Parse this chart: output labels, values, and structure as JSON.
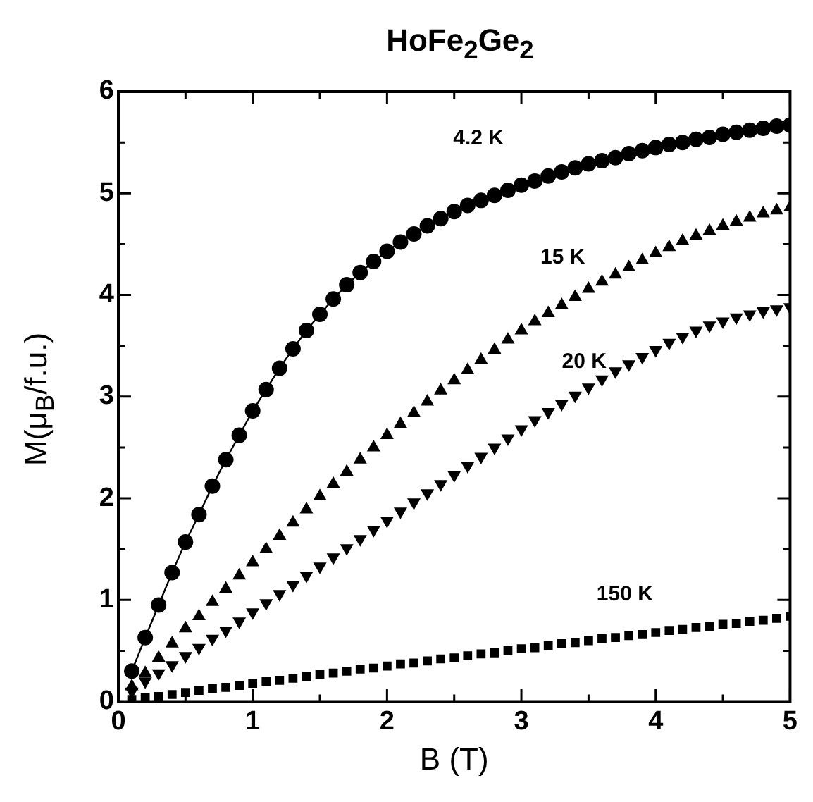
{
  "chart_data": {
    "type": "scatter",
    "title": "HoFe$_{2}$Ge$_{2}$",
    "xlabel": "B (T)",
    "ylabel": "M(μ$_{B}$/f.u.)",
    "xlim": [
      0,
      5
    ],
    "ylim": [
      0,
      6
    ],
    "xticks": [
      0,
      {
        "value": 0.5,
        "label": null
      },
      1,
      {
        "value": 1.5,
        "label": null
      },
      2,
      {
        "value": 2.5,
        "label": null
      },
      3,
      {
        "value": 3.5,
        "label": null
      },
      4,
      {
        "value": 4.5,
        "label": null
      },
      5
    ],
    "yticks": [
      0,
      {
        "value": 0.5,
        "label": null
      },
      1,
      {
        "value": 1.5,
        "label": null
      },
      2,
      {
        "value": 2.5,
        "label": null
      },
      3,
      {
        "value": 3.5,
        "label": null
      },
      4,
      {
        "value": 4.5,
        "label": null
      },
      5,
      {
        "value": 5.5,
        "label": null
      },
      6
    ],
    "series": [
      {
        "name": "4.2 K",
        "type": "line",
        "marker": "circle",
        "line_style": "solid",
        "color": "#000000",
        "x": [
          0.1,
          0.2,
          0.3,
          0.4,
          0.5,
          0.6,
          0.7,
          0.8,
          0.9,
          1.0,
          1.1,
          1.2,
          1.3,
          1.4,
          1.5,
          1.6,
          1.7,
          1.8,
          1.9,
          2.0,
          2.1,
          2.2,
          2.3,
          2.4,
          2.5,
          2.6,
          2.7,
          2.8,
          2.9,
          3.0,
          3.1,
          3.2,
          3.3,
          3.4,
          3.5,
          3.6,
          3.7,
          3.8,
          3.9,
          4.0,
          4.1,
          4.2,
          4.3,
          4.4,
          4.5,
          4.6,
          4.7,
          4.8,
          4.9,
          5.0
        ],
        "values": [
          0.3,
          0.63,
          0.95,
          1.27,
          1.57,
          1.84,
          2.12,
          2.38,
          2.62,
          2.86,
          3.07,
          3.28,
          3.47,
          3.65,
          3.81,
          3.96,
          4.1,
          4.22,
          4.33,
          4.43,
          4.52,
          4.6,
          4.68,
          4.75,
          4.82,
          4.88,
          4.93,
          4.98,
          5.03,
          5.08,
          5.12,
          5.17,
          5.21,
          5.25,
          5.29,
          5.32,
          5.35,
          5.39,
          5.42,
          5.45,
          5.48,
          5.5,
          5.53,
          5.55,
          5.58,
          5.6,
          5.62,
          5.64,
          5.66,
          5.67
        ]
      },
      {
        "name": "15 K",
        "marker": "triangle",
        "color": "#000000",
        "x": [
          0.1,
          0.2,
          0.3,
          0.4,
          0.5,
          0.6,
          0.7,
          0.8,
          0.9,
          1.0,
          1.1,
          1.2,
          1.3,
          1.4,
          1.5,
          1.6,
          1.7,
          1.8,
          1.9,
          2.0,
          2.1,
          2.2,
          2.3,
          2.4,
          2.5,
          2.6,
          2.7,
          2.8,
          2.9,
          3.0,
          3.1,
          3.2,
          3.3,
          3.4,
          3.5,
          3.6,
          3.7,
          3.8,
          3.9,
          4.0,
          4.1,
          4.2,
          4.3,
          4.4,
          4.5,
          4.6,
          4.7,
          4.8,
          4.9,
          5.0
        ],
        "values": [
          0.15,
          0.28,
          0.43,
          0.57,
          0.72,
          0.84,
          0.98,
          1.11,
          1.24,
          1.37,
          1.5,
          1.63,
          1.76,
          1.89,
          2.02,
          2.14,
          2.26,
          2.38,
          2.5,
          2.62,
          2.73,
          2.84,
          2.95,
          3.06,
          3.16,
          3.26,
          3.36,
          3.46,
          3.56,
          3.65,
          3.74,
          3.82,
          3.9,
          3.98,
          4.06,
          4.13,
          4.2,
          4.27,
          4.34,
          4.41,
          4.47,
          4.53,
          4.58,
          4.63,
          4.68,
          4.72,
          4.76,
          4.8,
          4.83,
          4.86
        ]
      },
      {
        "name": "20 K",
        "marker": "triangle-down",
        "color": "#000000",
        "x": [
          0.1,
          0.2,
          0.3,
          0.4,
          0.5,
          0.6,
          0.7,
          0.8,
          0.9,
          1.0,
          1.1,
          1.2,
          1.3,
          1.4,
          1.5,
          1.6,
          1.7,
          1.8,
          1.9,
          2.0,
          2.1,
          2.2,
          2.3,
          2.4,
          2.5,
          2.6,
          2.7,
          2.8,
          2.9,
          3.0,
          3.1,
          3.2,
          3.3,
          3.4,
          3.5,
          3.6,
          3.7,
          3.8,
          3.9,
          4.0,
          4.1,
          4.2,
          4.3,
          4.4,
          4.5,
          4.6,
          4.7,
          4.8,
          4.9,
          5.0
        ],
        "values": [
          0.1,
          0.2,
          0.28,
          0.36,
          0.45,
          0.53,
          0.62,
          0.7,
          0.79,
          0.88,
          0.97,
          1.06,
          1.15,
          1.24,
          1.33,
          1.42,
          1.51,
          1.6,
          1.69,
          1.78,
          1.87,
          1.96,
          2.05,
          2.14,
          2.23,
          2.32,
          2.41,
          2.5,
          2.59,
          2.68,
          2.77,
          2.85,
          2.93,
          3.01,
          3.09,
          3.17,
          3.25,
          3.32,
          3.39,
          3.46,
          3.53,
          3.59,
          3.65,
          3.7,
          3.74,
          3.78,
          3.81,
          3.84,
          3.86,
          3.88
        ]
      },
      {
        "name": "150 K",
        "marker": "square",
        "color": "#000000",
        "x": [
          0.1,
          0.2,
          0.3,
          0.4,
          0.5,
          0.6,
          0.7,
          0.8,
          0.9,
          1.0,
          1.1,
          1.2,
          1.3,
          1.4,
          1.5,
          1.6,
          1.7,
          1.8,
          1.9,
          2.0,
          2.1,
          2.2,
          2.3,
          2.4,
          2.5,
          2.6,
          2.7,
          2.8,
          2.9,
          3.0,
          3.1,
          3.2,
          3.3,
          3.4,
          3.5,
          3.6,
          3.7,
          3.8,
          3.9,
          4.0,
          4.1,
          4.2,
          4.3,
          4.4,
          4.5,
          4.6,
          4.7,
          4.8,
          4.9,
          5.0
        ],
        "values": [
          0.02,
          0.04,
          0.05,
          0.07,
          0.09,
          0.11,
          0.13,
          0.14,
          0.16,
          0.18,
          0.2,
          0.21,
          0.23,
          0.25,
          0.27,
          0.28,
          0.3,
          0.32,
          0.33,
          0.35,
          0.37,
          0.38,
          0.4,
          0.42,
          0.43,
          0.45,
          0.47,
          0.48,
          0.5,
          0.52,
          0.53,
          0.55,
          0.57,
          0.58,
          0.6,
          0.62,
          0.63,
          0.65,
          0.66,
          0.68,
          0.7,
          0.71,
          0.73,
          0.74,
          0.76,
          0.77,
          0.79,
          0.8,
          0.82,
          0.84
        ]
      }
    ]
  }
}
